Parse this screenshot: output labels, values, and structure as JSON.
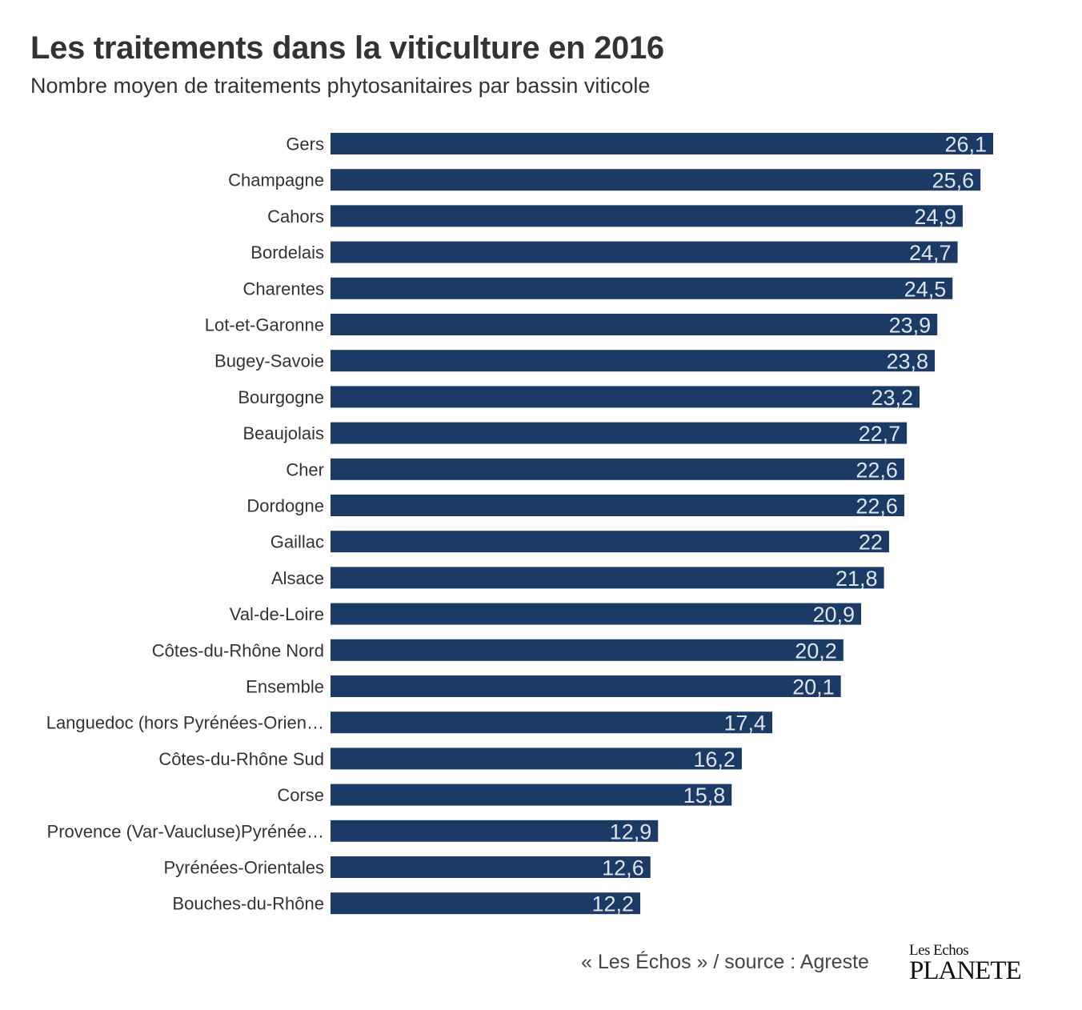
{
  "chart_data": {
    "type": "bar",
    "orientation": "horizontal",
    "title": "Les traitements dans la viticulture en 2016",
    "subtitle": "Nombre moyen de traitements phytosanitaires par bassin viticole",
    "categories": [
      "Gers",
      "Champagne",
      "Cahors",
      "Bordelais",
      "Charentes",
      "Lot-et-Garonne",
      "Bugey-Savoie",
      "Bourgogne",
      "Beaujolais",
      "Cher",
      "Dordogne",
      "Gaillac",
      "Alsace",
      "Val-de-Loire",
      "Côtes-du-Rhône Nord",
      "Ensemble",
      "Languedoc (hors Pyrénées-Orien…",
      "Côtes-du-Rhône Sud",
      "Corse",
      "Provence (Var-Vaucluse)Pyrénée…",
      "Pyrénées-Orientales",
      "Bouches-du-Rhône"
    ],
    "values": [
      26.1,
      25.6,
      24.9,
      24.7,
      24.5,
      23.9,
      23.8,
      23.2,
      22.7,
      22.6,
      22.6,
      22,
      21.8,
      20.9,
      20.2,
      20.1,
      17.4,
      16.2,
      15.8,
      12.9,
      12.6,
      12.2
    ],
    "value_labels": [
      "26,1",
      "25,6",
      "24,9",
      "24,7",
      "24,5",
      "23,9",
      "23,8",
      "23,2",
      "22,7",
      "22,6",
      "22,6",
      "22",
      "21,8",
      "20,9",
      "20,2",
      "20,1",
      "17,4",
      "16,2",
      "15,8",
      "12,9",
      "12,6",
      "12,2"
    ],
    "xlim": [
      0,
      26.1
    ],
    "grid": false,
    "bar_color": "#1b3a66",
    "label_color": "#dfe3ea"
  },
  "footer": {
    "source": "« Les Échos » / source : Agreste",
    "logo_line1": "Les Echos",
    "logo_line2": "PLANETE"
  }
}
